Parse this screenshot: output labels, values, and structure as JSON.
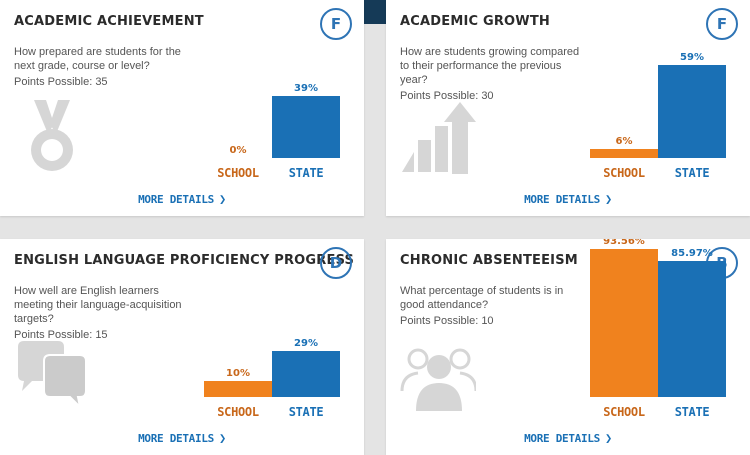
{
  "cards": [
    {
      "title": "ACADEMIC ACHIEVEMENT",
      "grade": "F",
      "question": "How prepared are students for the next grade, course or level?",
      "points": "Points Possible: 35",
      "icon": "medal-icon",
      "more_details": "MORE DETAILS",
      "chart_data": {
        "type": "bar",
        "categories": [
          "SCHOOL",
          "STATE"
        ],
        "values": [
          0,
          39
        ],
        "labels": [
          "0%",
          "39%"
        ],
        "ylim": [
          0,
          100
        ]
      }
    },
    {
      "title": "ACADEMIC GROWTH",
      "grade": "F",
      "question": "How are students growing compared to their performance the previous year?",
      "points": "Points Possible: 30",
      "icon": "growth-arrow-icon",
      "more_details": "MORE DETAILS",
      "chart_data": {
        "type": "bar",
        "categories": [
          "SCHOOL",
          "STATE"
        ],
        "values": [
          6,
          59
        ],
        "labels": [
          "6%",
          "59%"
        ],
        "ylim": [
          0,
          100
        ]
      }
    },
    {
      "title": "ENGLISH LANGUAGE PROFICIENCY PROGRESS",
      "grade": "D",
      "question": "How well are English learners meeting their language-acquisition targets?",
      "points": "Points Possible: 15",
      "icon": "speech-bubbles-icon",
      "more_details": "MORE DETAILS",
      "chart_data": {
        "type": "bar",
        "categories": [
          "SCHOOL",
          "STATE"
        ],
        "values": [
          10,
          29
        ],
        "labels": [
          "10%",
          "29%"
        ],
        "ylim": [
          0,
          100
        ]
      }
    },
    {
      "title": "CHRONIC ABSENTEEISM",
      "grade": "B",
      "question": "What percentage of students is in good attendance?",
      "points": "Points Possible: 10",
      "icon": "people-group-icon",
      "more_details": "MORE DETAILS",
      "chart_data": {
        "type": "bar",
        "categories": [
          "SCHOOL",
          "STATE"
        ],
        "values": [
          93.56,
          85.97
        ],
        "labels": [
          "93.56%",
          "85.97%"
        ],
        "ylim": [
          0,
          100
        ]
      }
    }
  ]
}
